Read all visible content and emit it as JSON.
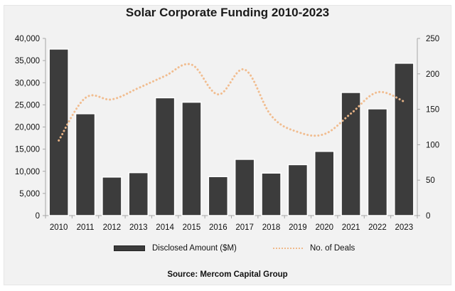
{
  "chart_data": {
    "type": "bar",
    "title": "Solar Corporate Funding 2010-2023",
    "source": "Source: Mercom Capital Group",
    "categories": [
      "2010",
      "2011",
      "2012",
      "2013",
      "2014",
      "2015",
      "2016",
      "2017",
      "2018",
      "2019",
      "2020",
      "2021",
      "2022",
      "2023"
    ],
    "series": [
      {
        "name": "Disclosed Amount ($M)",
        "type": "bar",
        "axis": "left",
        "color": "#3c3c3c",
        "values": [
          37600,
          23000,
          8700,
          9700,
          26600,
          25600,
          8800,
          12700,
          9600,
          11500,
          14500,
          27800,
          24100,
          34400
        ]
      },
      {
        "name": "No. of Deals",
        "type": "line",
        "style": "dotted",
        "axis": "right",
        "color": "#f0b98a",
        "values": [
          106,
          166,
          164,
          180,
          197,
          213,
          171,
          206,
          141,
          118,
          115,
          144,
          174,
          161
        ]
      }
    ],
    "left_axis": {
      "ylim": [
        0,
        40000
      ],
      "ticks": [
        0,
        5000,
        10000,
        15000,
        20000,
        25000,
        30000,
        35000,
        40000
      ],
      "tick_labels": [
        "0",
        "5,000",
        "10,000",
        "15,000",
        "20,000",
        "25,000",
        "30,000",
        "35,000",
        "40,000"
      ]
    },
    "right_axis": {
      "ylim": [
        0,
        250
      ],
      "ticks": [
        0,
        50,
        100,
        150,
        200,
        250
      ],
      "tick_labels": [
        "0",
        "50",
        "100",
        "150",
        "200",
        "250"
      ]
    },
    "xlabel": "",
    "ylabel": "",
    "grid": false,
    "legend_position": "bottom"
  }
}
